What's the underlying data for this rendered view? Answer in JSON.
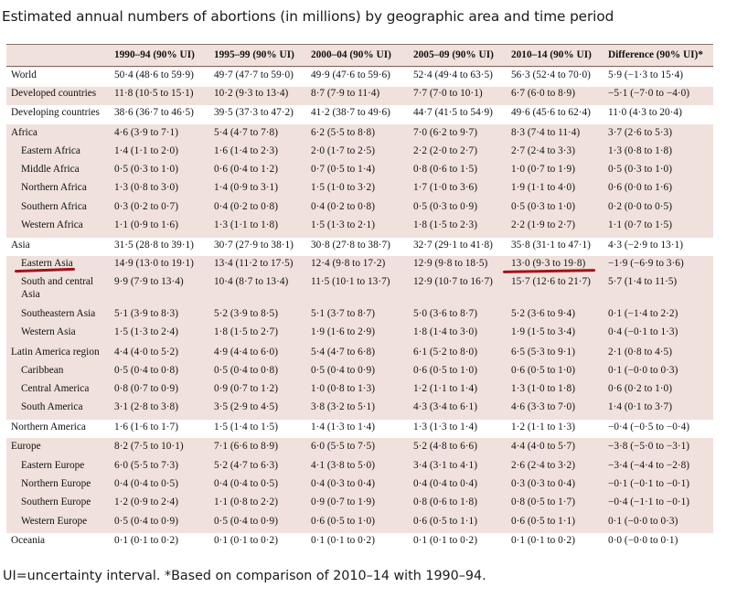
{
  "title": "Estimated annual numbers of abortions (in millions) by geographic area and time period",
  "footnote": "UI=uncertainty interval. *Based on comparison of 2010–14 with 1990–94.",
  "colors": {
    "table_bg": "#f0e1dc",
    "band": "#ffffff",
    "annotation": "#a3121b"
  },
  "headers": [
    "",
    "1990–94 (90% UI)",
    "1995–99 (90% UI)",
    "2000–04 (90% UI)",
    "2005–09 (90% UI)",
    "2010–14 (90% UI)",
    "Difference (90% UI)*"
  ],
  "rows": [
    {
      "region": "World",
      "v": [
        "50·4 (48·6 to 59·9)",
        "49·7 (47·7 to 59·0)",
        "49·9 (47·6 to 59·6)",
        "52·4 (49·4 to 63·5)",
        "56·3 (52·4 to 70·0)",
        "5·9 (−1·3 to 15·4)"
      ]
    },
    {
      "region": "Developed countries",
      "v": [
        "11·8 (10·5 to 15·1)",
        "10·2 (9·3 to 13·4)",
        "8·7 (7·9 to 11·4)",
        "7·7 (7·0 to 10·1)",
        "6·7 (6·0 to 8·9)",
        "−5·1 (−7·0 to −4·0)"
      ]
    },
    {
      "region": "Developing countries",
      "v": [
        "38·6 (36·7 to 46·5)",
        "39·5 (37·3 to 47·2)",
        "41·2 (38·7 to 49·6)",
        "44·7 (41·5 to 54·9)",
        "49·6 (45·6 to 62·4)",
        "11·0 (4·3 to 20·4)"
      ]
    },
    {
      "region": "Africa",
      "v": [
        "4·6 (3·9 to 7·1)",
        "5·4 (4·7 to 7·8)",
        "6·2 (5·5 to 8·8)",
        "7·0 (6·2 to 9·7)",
        "8·3 (7·4 to 11·4)",
        "3·7 (2·6 to 5·3)"
      ]
    },
    {
      "region": "Eastern Africa",
      "v": [
        "1·4 (1·1 to 2·0)",
        "1·6 (1·4 to 2·3)",
        "2·0 (1·7 to 2·5)",
        "2·2 (2·0 to 2·7)",
        "2·7 (2·4 to 3·3)",
        "1·3 (0·8 to 1·8)"
      ]
    },
    {
      "region": "Middle Africa",
      "v": [
        "0·5 (0·3 to 1·0)",
        "0·6 (0·4 to 1·2)",
        "0·7 (0·5 to 1·4)",
        "0·8 (0·6 to 1·5)",
        "1·0 (0·7 to 1·9)",
        "0·5 (0·3 to 1·0)"
      ]
    },
    {
      "region": "Northern Africa",
      "v": [
        "1·3 (0·8 to 3·0)",
        "1·4 (0·9 to 3·1)",
        "1·5 (1·0 to 3·2)",
        "1·7 (1·0 to 3·6)",
        "1·9 (1·1 to 4·0)",
        "0·6 (0·0 to 1·6)"
      ]
    },
    {
      "region": "Southern Africa",
      "v": [
        "0·3 (0·2 to 0·7)",
        "0·4 (0·2 to 0·8)",
        "0·4 (0·2 to 0·8)",
        "0·5 (0·3 to 0·9)",
        "0·5 (0·3 to 1·0)",
        "0·2 (0·0 to 0·5)"
      ]
    },
    {
      "region": "Western Africa",
      "v": [
        "1·1 (0·9 to 1·6)",
        "1·3 (1·1 to 1·8)",
        "1·5 (1·3 to 2·1)",
        "1·8 (1·5 to 2·3)",
        "2·2 (1·9 to 2·7)",
        "1·1 (0·7 to 1·5)"
      ]
    },
    {
      "region": "Asia",
      "v": [
        "31·5 (28·8 to 39·1)",
        "30·7 (27·9 to 38·1)",
        "30·8 (27·8 to 38·7)",
        "32·7 (29·1 to 41·8)",
        "35·8 (31·1 to 47·1)",
        "4·3 (−2·9 to 13·1)"
      ]
    },
    {
      "region": "Eastern Asia",
      "v": [
        "14·9 (13·0 to 19·1)",
        "13·4 (11·2 to 17·5)",
        "12·4 (9·8 to 17·2)",
        "12·9 (9·8 to 18·5)",
        "13·0 (9·3 to 19·8)",
        "−1·9 (−6·9 to 3·6)"
      ]
    },
    {
      "region": "South and central Asia",
      "v": [
        "9·9 (7·9 to 13·4)",
        "10·4 (8·7 to 13·4)",
        "11·5 (10·1 to 13·7)",
        "12·9 (10·7 to 16·7)",
        "15·7 (12·6 to 21·7)",
        "5·7 (1·4 to 11·5)"
      ]
    },
    {
      "region": "Southeastern Asia",
      "v": [
        "5·1 (3·9 to 8·3)",
        "5·2 (3·9 to 8·5)",
        "5·1 (3·7 to 8·7)",
        "5·0 (3·6 to 8·7)",
        "5·2 (3·6 to 9·4)",
        "0·1 (−1·4 to 2·2)"
      ]
    },
    {
      "region": "Western Asia",
      "v": [
        "1·5 (1·3 to 2·4)",
        "1·8 (1·5 to 2·7)",
        "1·9 (1·6 to 2·9)",
        "1·8 (1·4 to 3·0)",
        "1·9 (1·5 to 3·4)",
        "0·4 (−0·1 to 1·3)"
      ]
    },
    {
      "region": "Latin America region",
      "v": [
        "4·4 (4·0 to 5·2)",
        "4·9 (4·4 to 6·0)",
        "5·4 (4·7 to 6·8)",
        "6·1 (5·2 to 8·0)",
        "6·5 (5·3 to 9·1)",
        "2·1 (0·8 to 4·5)"
      ]
    },
    {
      "region": "Caribbean",
      "v": [
        "0·5 (0·4 to 0·8)",
        "0·5 (0·4 to 0·8)",
        "0·5 (0·4 to 0·9)",
        "0·6 (0·5 to 1·0)",
        "0·6 (0·5 to 1·0)",
        "0·1 (−0·0 to 0·3)"
      ]
    },
    {
      "region": "Central America",
      "v": [
        "0·8 (0·7 to 0·9)",
        "0·9 (0·7 to 1·2)",
        "1·0 (0·8 to 1·3)",
        "1·2 (1·1 to 1·4)",
        "1·3 (1·0 to 1·8)",
        "0·6 (0·2 to 1·0)"
      ]
    },
    {
      "region": "South America",
      "v": [
        "3·1 (2·8 to 3·8)",
        "3·5 (2·9 to 4·5)",
        "3·8 (3·2 to 5·1)",
        "4·3 (3·4 to 6·1)",
        "4·6 (3·3 to 7·0)",
        "1·4 (0·1 to 3·7)"
      ]
    },
    {
      "region": "Northern America",
      "v": [
        "1·6 (1·6 to 1·7)",
        "1·5 (1·4 to 1·5)",
        "1·4 (1·3 to 1·4)",
        "1·3 (1·3 to 1·4)",
        "1·2 (1·1 to 1·3)",
        "−0·4 (−0·5 to −0·4)"
      ]
    },
    {
      "region": "Europe",
      "v": [
        "8·2 (7·5 to 10·1)",
        "7·1 (6·6 to 8·9)",
        "6·0 (5·5 to 7·5)",
        "5·2 (4·8 to 6·6)",
        "4·4 (4·0 to 5·7)",
        "−3·8 (−5·0 to −3·1)"
      ]
    },
    {
      "region": "Eastern Europe",
      "v": [
        "6·0 (5·5 to 7·3)",
        "5·2 (4·7 to 6·3)",
        "4·1 (3·8 to 5·0)",
        "3·4 (3·1 to 4·1)",
        "2·6 (2·4 to 3·2)",
        "−3·4 (−4·4 to −2·8)"
      ]
    },
    {
      "region": "Northern Europe",
      "v": [
        "0·4 (0·4 to 0·5)",
        "0·4 (0·4 to 0·5)",
        "0·4 (0·3 to 0·4)",
        "0·4 (0·4 to 0·4)",
        "0·3 (0·3 to 0·4)",
        "−0·1 (−0·1 to −0·1)"
      ]
    },
    {
      "region": "Southern Europe",
      "v": [
        "1·2 (0·9 to 2·4)",
        "1·1 (0·8 to 2·2)",
        "0·9 (0·7 to 1·9)",
        "0·8 (0·6 to 1·8)",
        "0·8 (0·5 to 1·7)",
        "−0·4 (−1·1 to −0·1)"
      ]
    },
    {
      "region": "Western Europe",
      "v": [
        "0·5 (0·4 to 0·9)",
        "0·5 (0·4 to 0·9)",
        "0·6 (0·5 to 1·0)",
        "0·6 (0·5 to 1·1)",
        "0·6 (0·5 to 1·1)",
        "0·1 (−0·0 to 0·3)"
      ]
    },
    {
      "region": "Oceania",
      "v": [
        "0·1 (0·1 to 0·2)",
        "0·1 (0·1 to 0·2)",
        "0·1 (0·1 to 0·2)",
        "0·1 (0·1 to 0·2)",
        "0·1 (0·1 to 0·2)",
        "0·0 (−0·0 to 0·1)"
      ]
    }
  ]
}
